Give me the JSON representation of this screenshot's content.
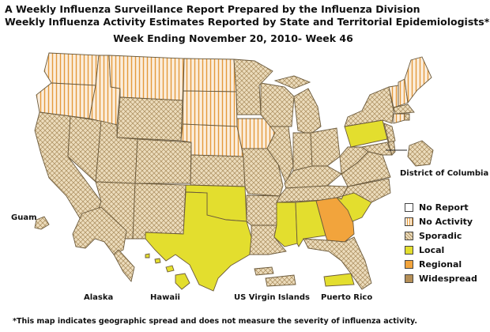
{
  "title_line1": "A Weekly Influenza Surveillance Report Prepared by the Influenza Division",
  "title_line2": "Weekly Influenza Activity Estimates Reported by State and Territorial Epidemiologists*",
  "subtitle": "Week Ending November 20, 2010- Week 46",
  "labels": {
    "dc": "District of Columbia",
    "guam": "Guam",
    "alaska": "Alaska",
    "hawaii": "Hawaii",
    "usvi": "US Virgin Islands",
    "pr": "Puerto Rico"
  },
  "legend": [
    {
      "key": "no_report",
      "label": "No Report",
      "color": "#ffffff"
    },
    {
      "key": "no_activity",
      "label": "No Activity",
      "color": "#f6d7a8"
    },
    {
      "key": "sporadic",
      "label": "Sporadic",
      "color": "#e9d9b8"
    },
    {
      "key": "local",
      "label": "Local",
      "color": "#e3de2e"
    },
    {
      "key": "regional",
      "label": "Regional",
      "color": "#f2a43c"
    },
    {
      "key": "widespread",
      "label": "Widespread",
      "color": "#b58f57"
    }
  ],
  "activity_levels": {
    "no_activity": [
      "Washington",
      "Oregon",
      "Idaho",
      "Montana",
      "North Dakota",
      "South Dakota",
      "Nebraska",
      "Iowa",
      "Vermont",
      "New Hampshire",
      "Maine",
      "Connecticut"
    ],
    "local": [
      "Oklahoma",
      "Texas",
      "Mississippi",
      "Alabama",
      "South Carolina",
      "Pennsylvania",
      "Hawaii",
      "Puerto Rico"
    ],
    "regional": [
      "Georgia"
    ],
    "sporadic": [
      "California",
      "Nevada",
      "Utah",
      "Arizona",
      "New Mexico",
      "Colorado",
      "Wyoming",
      "Kansas",
      "Minnesota",
      "Missouri",
      "Arkansas",
      "Louisiana",
      "Wisconsin",
      "Illinois",
      "Michigan",
      "Indiana",
      "Ohio",
      "Kentucky",
      "Tennessee",
      "West Virginia",
      "Virginia",
      "North Carolina",
      "Florida",
      "New York",
      "New Jersey",
      "Massachusetts",
      "Rhode Island",
      "Delaware",
      "Maryland",
      "District of Columbia",
      "Alaska",
      "Guam",
      "US Virgin Islands"
    ]
  },
  "footnote": "*This map indicates geographic spread and does not measure the severity of influenza activity."
}
